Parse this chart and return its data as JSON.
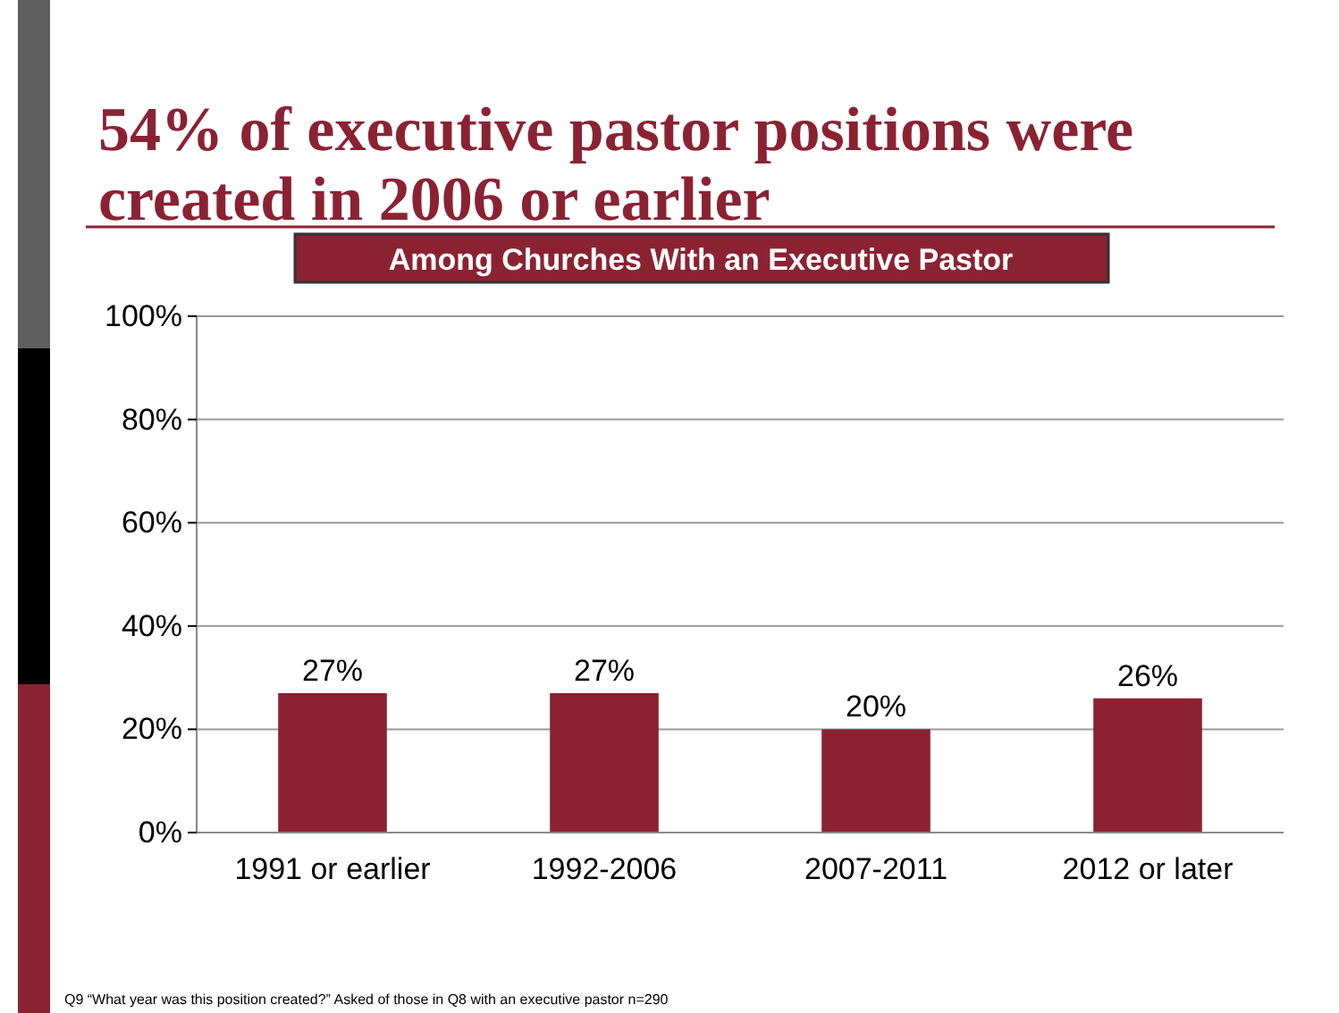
{
  "chart_data": {
    "type": "bar",
    "title": "54% of executive pastor positions were created in 2006 or earlier",
    "subtitle": "Among Churches With an Executive Pastor",
    "categories": [
      "1991 or earlier",
      "1992-2006",
      "2007-2011",
      "2012 or later"
    ],
    "values": [
      27,
      27,
      20,
      26
    ],
    "value_labels": [
      "27%",
      "27%",
      "20%",
      "26%"
    ],
    "color": "#8b2232",
    "ylim": [
      0,
      100
    ],
    "yticks": [
      {
        "value": 0,
        "label": "0%"
      },
      {
        "value": 20,
        "label": "20%"
      },
      {
        "value": 40,
        "label": "40%"
      },
      {
        "value": 60,
        "label": "60%"
      },
      {
        "value": 80,
        "label": "80%"
      },
      {
        "value": 100,
        "label": "100%"
      }
    ],
    "grid": "y",
    "annotations": [
      "Q9 “What year was this position created?” Asked of those in Q8 with an executive pastor n=290"
    ]
  }
}
